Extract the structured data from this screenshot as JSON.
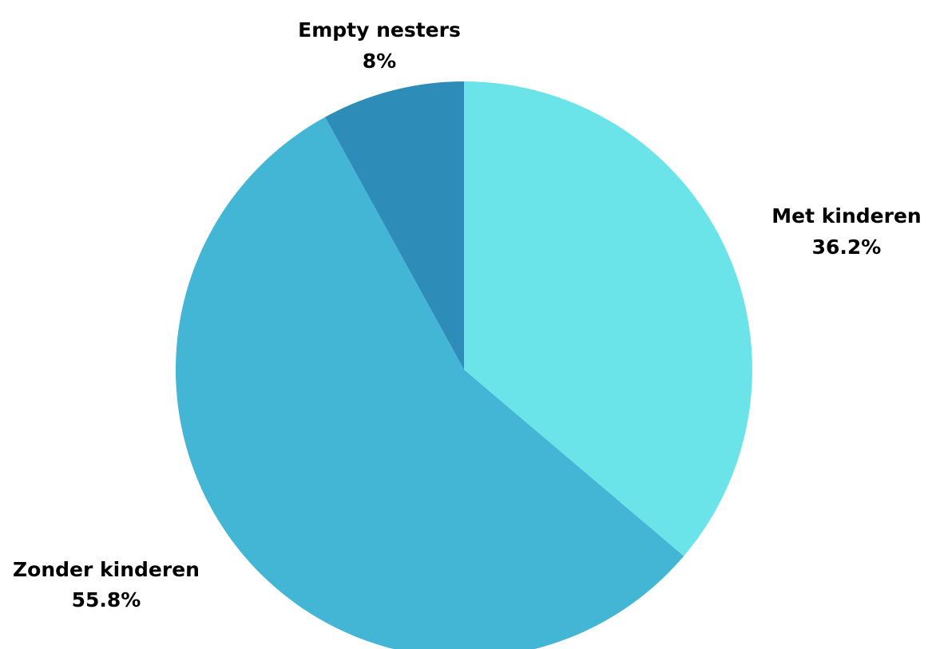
{
  "chart_data": {
    "type": "pie",
    "title": "",
    "slices": [
      {
        "label": "Met kinderen",
        "value": 36.2,
        "value_label": "36.2%",
        "color": "#6AE4E8"
      },
      {
        "label": "Zonder kinderen",
        "value": 55.8,
        "value_label": "55.8%",
        "color": "#43B6D5"
      },
      {
        "label": "Empty nesters",
        "value": 8,
        "value_label": "8%",
        "color": "#2E8CB9"
      }
    ],
    "start_angle": "12 o'clock",
    "direction": "clockwise",
    "legend": "none",
    "labels": "outside"
  }
}
